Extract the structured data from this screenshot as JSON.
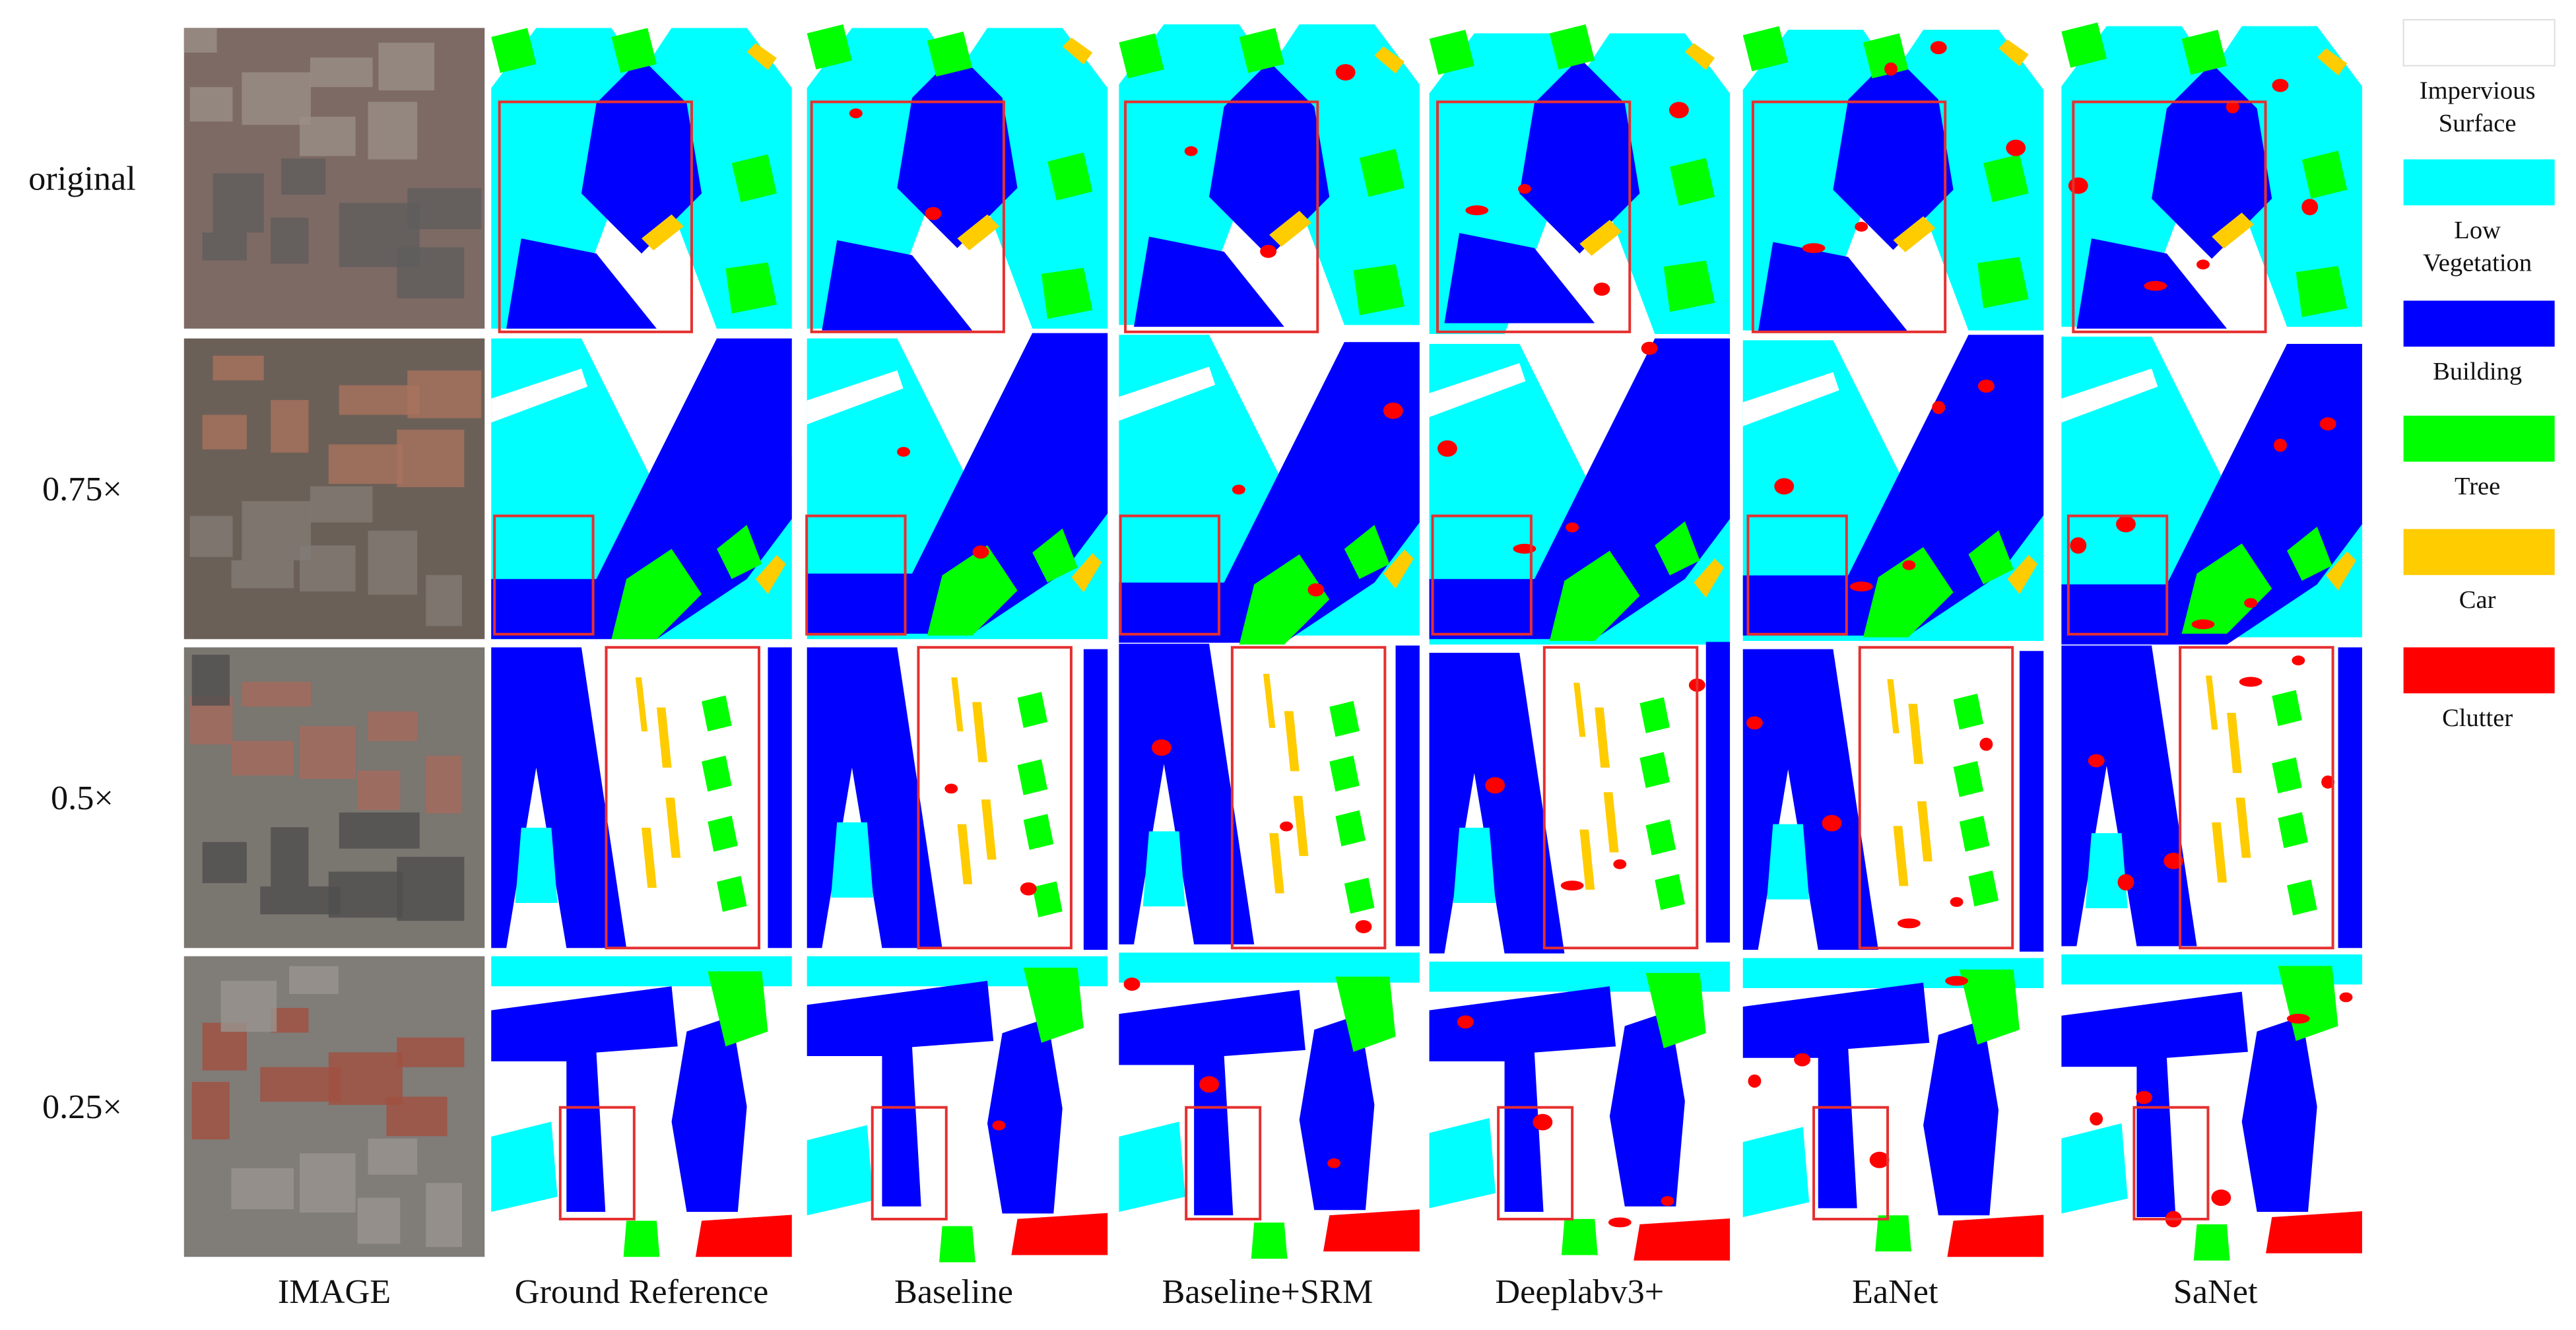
{
  "row_labels": [
    "original",
    "0.75×",
    "0.5×",
    "0.25×"
  ],
  "column_labels": [
    "IMAGE",
    "Ground Reference",
    "Baseline",
    "Baseline+SRM",
    "Deeplabv3+",
    "EaNet",
    "SaNet"
  ],
  "legend": [
    {
      "lines": [
        "Impervious",
        "Surface"
      ],
      "color": "#ffffff"
    },
    {
      "lines": [
        "Low",
        "Vegetation"
      ],
      "color": "#00ffff"
    },
    {
      "lines": [
        "Building"
      ],
      "color": "#0000ff"
    },
    {
      "lines": [
        "Tree"
      ],
      "color": "#00ff00"
    },
    {
      "lines": [
        "Car"
      ],
      "color": "#ffcc00"
    },
    {
      "lines": [
        "Clutter"
      ],
      "color": "#ff0000"
    }
  ]
}
